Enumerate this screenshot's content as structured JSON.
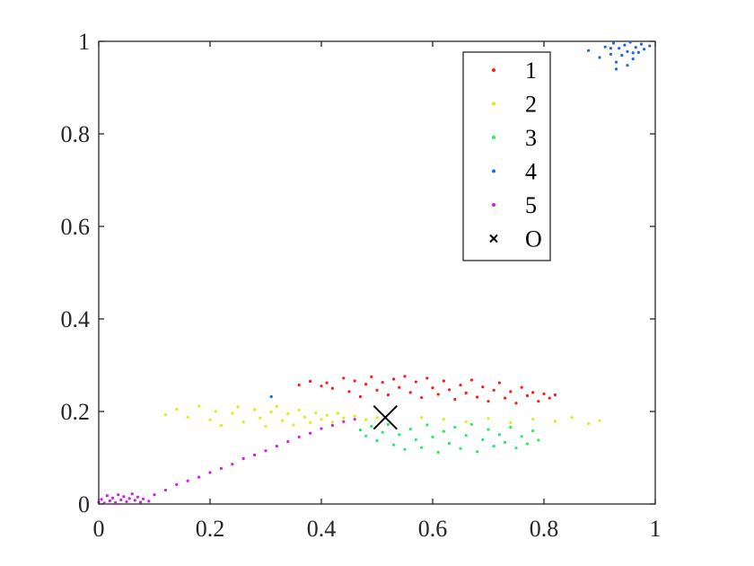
{
  "chart_data": {
    "type": "scatter",
    "title": "",
    "xlabel": "",
    "ylabel": "",
    "xlim": [
      0,
      1
    ],
    "ylim": [
      0,
      1
    ],
    "xticks": [
      0,
      0.2,
      0.4,
      0.6,
      0.8,
      1
    ],
    "yticks": [
      0,
      0.2,
      0.4,
      0.6,
      0.8,
      1
    ],
    "xtick_labels": [
      "0",
      "0.2",
      "0.4",
      "0.6",
      "0.8",
      "1"
    ],
    "ytick_labels": [
      "0",
      "0.2",
      "0.4",
      "0.6",
      "0.8",
      "1"
    ],
    "grid": false,
    "legend_position": "top-right",
    "series": [
      {
        "name": "1",
        "color": "#ff1a1a",
        "marker": "dot",
        "points": [
          [
            0.36,
            0.257
          ],
          [
            0.38,
            0.265
          ],
          [
            0.4,
            0.255
          ],
          [
            0.41,
            0.262
          ],
          [
            0.42,
            0.25
          ],
          [
            0.44,
            0.272
          ],
          [
            0.45,
            0.243
          ],
          [
            0.46,
            0.266
          ],
          [
            0.47,
            0.232
          ],
          [
            0.48,
            0.259
          ],
          [
            0.49,
            0.275
          ],
          [
            0.5,
            0.246
          ],
          [
            0.51,
            0.263
          ],
          [
            0.52,
            0.236
          ],
          [
            0.53,
            0.27
          ],
          [
            0.54,
            0.252
          ],
          [
            0.55,
            0.276
          ],
          [
            0.56,
            0.241
          ],
          [
            0.57,
            0.264
          ],
          [
            0.58,
            0.23
          ],
          [
            0.59,
            0.272
          ],
          [
            0.6,
            0.251
          ],
          [
            0.61,
            0.237
          ],
          [
            0.62,
            0.266
          ],
          [
            0.63,
            0.247
          ],
          [
            0.64,
            0.226
          ],
          [
            0.65,
            0.257
          ],
          [
            0.66,
            0.24
          ],
          [
            0.67,
            0.268
          ],
          [
            0.68,
            0.231
          ],
          [
            0.69,
            0.253
          ],
          [
            0.7,
            0.222
          ],
          [
            0.71,
            0.246
          ],
          [
            0.72,
            0.262
          ],
          [
            0.73,
            0.229
          ],
          [
            0.74,
            0.243
          ],
          [
            0.75,
            0.218
          ],
          [
            0.76,
            0.252
          ],
          [
            0.77,
            0.234
          ],
          [
            0.78,
            0.241
          ],
          [
            0.79,
            0.222
          ],
          [
            0.8,
            0.238
          ],
          [
            0.81,
            0.229
          ],
          [
            0.82,
            0.236
          ]
        ]
      },
      {
        "name": "2",
        "color": "#ddee11",
        "marker": "dot",
        "points": [
          [
            0.12,
            0.193
          ],
          [
            0.14,
            0.205
          ],
          [
            0.16,
            0.188
          ],
          [
            0.18,
            0.212
          ],
          [
            0.2,
            0.182
          ],
          [
            0.21,
            0.2
          ],
          [
            0.22,
            0.17
          ],
          [
            0.24,
            0.196
          ],
          [
            0.25,
            0.21
          ],
          [
            0.26,
            0.177
          ],
          [
            0.28,
            0.204
          ],
          [
            0.29,
            0.186
          ],
          [
            0.3,
            0.168
          ],
          [
            0.31,
            0.199
          ],
          [
            0.32,
            0.211
          ],
          [
            0.33,
            0.18
          ],
          [
            0.34,
            0.195
          ],
          [
            0.35,
            0.171
          ],
          [
            0.36,
            0.203
          ],
          [
            0.37,
            0.188
          ],
          [
            0.38,
            0.176
          ],
          [
            0.39,
            0.197
          ],
          [
            0.4,
            0.183
          ],
          [
            0.41,
            0.192
          ],
          [
            0.42,
            0.177
          ],
          [
            0.43,
            0.196
          ],
          [
            0.44,
            0.186
          ],
          [
            0.46,
            0.19
          ],
          [
            0.48,
            0.182
          ],
          [
            0.5,
            0.187
          ],
          [
            0.58,
            0.187
          ],
          [
            0.62,
            0.183
          ],
          [
            0.66,
            0.178
          ],
          [
            0.7,
            0.185
          ],
          [
            0.74,
            0.176
          ],
          [
            0.78,
            0.183
          ],
          [
            0.82,
            0.179
          ],
          [
            0.85,
            0.187
          ],
          [
            0.88,
            0.174
          ],
          [
            0.9,
            0.18
          ]
        ]
      },
      {
        "name": "3",
        "color": "#22ee66",
        "marker": "dot",
        "points": [
          [
            0.47,
            0.16
          ],
          [
            0.48,
            0.147
          ],
          [
            0.49,
            0.168
          ],
          [
            0.5,
            0.137
          ],
          [
            0.51,
            0.155
          ],
          [
            0.52,
            0.172
          ],
          [
            0.53,
            0.128
          ],
          [
            0.54,
            0.15
          ],
          [
            0.55,
            0.118
          ],
          [
            0.56,
            0.162
          ],
          [
            0.57,
            0.139
          ],
          [
            0.58,
            0.122
          ],
          [
            0.59,
            0.171
          ],
          [
            0.6,
            0.145
          ],
          [
            0.61,
            0.112
          ],
          [
            0.62,
            0.157
          ],
          [
            0.63,
            0.131
          ],
          [
            0.64,
            0.166
          ],
          [
            0.65,
            0.12
          ],
          [
            0.66,
            0.148
          ],
          [
            0.67,
            0.172
          ],
          [
            0.68,
            0.113
          ],
          [
            0.69,
            0.139
          ],
          [
            0.7,
            0.161
          ],
          [
            0.71,
            0.125
          ],
          [
            0.72,
            0.15
          ],
          [
            0.73,
            0.133
          ],
          [
            0.74,
            0.166
          ],
          [
            0.75,
            0.121
          ],
          [
            0.76,
            0.146
          ],
          [
            0.77,
            0.13
          ],
          [
            0.78,
            0.158
          ],
          [
            0.79,
            0.138
          ]
        ]
      },
      {
        "name": "4",
        "color": "#1a66ee",
        "marker": "dot",
        "points": [
          [
            0.88,
            0.98
          ],
          [
            0.9,
            0.965
          ],
          [
            0.91,
            0.988
          ],
          [
            0.92,
            0.972
          ],
          [
            0.925,
            0.996
          ],
          [
            0.93,
            0.955
          ],
          [
            0.935,
            0.985
          ],
          [
            0.94,
            0.97
          ],
          [
            0.945,
            0.992
          ],
          [
            0.95,
            0.978
          ],
          [
            0.955,
            0.998
          ],
          [
            0.96,
            0.962
          ],
          [
            0.965,
            0.987
          ],
          [
            0.97,
            0.976
          ],
          [
            0.975,
            0.994
          ],
          [
            0.98,
            0.983
          ],
          [
            0.99,
            0.99
          ],
          [
            0.93,
            0.94
          ],
          [
            0.95,
            0.948
          ],
          [
            0.92,
            0.985
          ],
          [
            0.96,
            0.975
          ],
          [
            0.31,
            0.232
          ]
        ]
      },
      {
        "name": "5",
        "color": "#cc22dd",
        "marker": "dot",
        "points": [
          [
            0.0,
            0.004
          ],
          [
            0.005,
            0.01
          ],
          [
            0.01,
            0.002
          ],
          [
            0.015,
            0.018
          ],
          [
            0.02,
            0.007
          ],
          [
            0.025,
            0.013
          ],
          [
            0.03,
            0.003
          ],
          [
            0.035,
            0.02
          ],
          [
            0.04,
            0.009
          ],
          [
            0.045,
            0.016
          ],
          [
            0.05,
            0.005
          ],
          [
            0.055,
            0.012
          ],
          [
            0.06,
            0.022
          ],
          [
            0.065,
            0.008
          ],
          [
            0.07,
            0.015
          ],
          [
            0.075,
            0.004
          ],
          [
            0.08,
            0.011
          ],
          [
            0.09,
            0.006
          ],
          [
            0.1,
            0.02
          ],
          [
            0.12,
            0.03
          ],
          [
            0.14,
            0.042
          ],
          [
            0.16,
            0.05
          ],
          [
            0.18,
            0.058
          ],
          [
            0.2,
            0.068
          ],
          [
            0.22,
            0.077
          ],
          [
            0.24,
            0.086
          ],
          [
            0.26,
            0.098
          ],
          [
            0.28,
            0.106
          ],
          [
            0.3,
            0.115
          ],
          [
            0.32,
            0.125
          ],
          [
            0.34,
            0.135
          ],
          [
            0.36,
            0.145
          ],
          [
            0.38,
            0.153
          ],
          [
            0.4,
            0.163
          ],
          [
            0.42,
            0.17
          ],
          [
            0.44,
            0.178
          ],
          [
            0.46,
            0.183
          ]
        ]
      },
      {
        "name": "O",
        "color": "#000000",
        "marker": "x",
        "points": [
          [
            0.515,
            0.187
          ]
        ]
      }
    ]
  }
}
